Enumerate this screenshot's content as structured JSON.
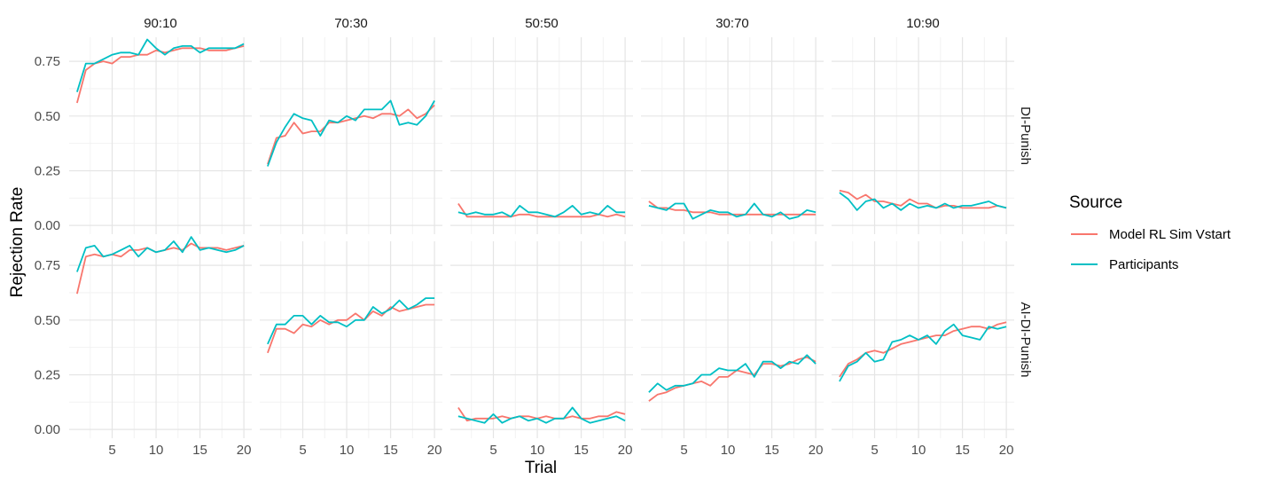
{
  "chart_data": {
    "type": "line",
    "xlabel": "Trial",
    "ylabel": "Rejection Rate",
    "xlim": [
      1,
      20
    ],
    "ylim": [
      0,
      0.85
    ],
    "x_ticks": [
      5,
      10,
      15,
      20
    ],
    "y_ticks": [
      0,
      0.25,
      0.5,
      0.75
    ],
    "y_tick_labels": [
      "0.00",
      "0.25",
      "0.50",
      "0.75"
    ],
    "grid": true,
    "legend": {
      "title": "Source",
      "position": "right",
      "entries": [
        {
          "name": "Model RL Sim Vstart",
          "color": "#F8766D"
        },
        {
          "name": "Participants",
          "color": "#00BFC4"
        }
      ]
    },
    "columns": [
      "90:10",
      "70:30",
      "50:50",
      "30:70",
      "10:90"
    ],
    "rows": [
      "DI-Punish",
      "AI-DI-Punish"
    ],
    "x": [
      1,
      2,
      3,
      4,
      5,
      6,
      7,
      8,
      9,
      10,
      11,
      12,
      13,
      14,
      15,
      16,
      17,
      18,
      19,
      20
    ],
    "panels": [
      {
        "row": "DI-Punish",
        "col": "90:10",
        "series": [
          {
            "name": "Model RL Sim Vstart",
            "values": [
              0.56,
              0.71,
              0.74,
              0.75,
              0.74,
              0.77,
              0.77,
              0.78,
              0.78,
              0.8,
              0.79,
              0.8,
              0.81,
              0.81,
              0.81,
              0.8,
              0.8,
              0.8,
              0.81,
              0.82
            ]
          },
          {
            "name": "Participants",
            "values": [
              0.61,
              0.74,
              0.74,
              0.76,
              0.78,
              0.79,
              0.79,
              0.78,
              0.85,
              0.81,
              0.78,
              0.81,
              0.82,
              0.82,
              0.79,
              0.81,
              0.81,
              0.81,
              0.81,
              0.83
            ]
          }
        ]
      },
      {
        "row": "DI-Punish",
        "col": "70:30",
        "series": [
          {
            "name": "Model RL Sim Vstart",
            "values": [
              0.28,
              0.4,
              0.41,
              0.47,
              0.42,
              0.43,
              0.43,
              0.47,
              0.47,
              0.48,
              0.49,
              0.5,
              0.49,
              0.51,
              0.51,
              0.5,
              0.53,
              0.49,
              0.51,
              0.55
            ]
          },
          {
            "name": "Participants",
            "values": [
              0.27,
              0.38,
              0.45,
              0.51,
              0.49,
              0.48,
              0.41,
              0.48,
              0.47,
              0.5,
              0.48,
              0.53,
              0.53,
              0.53,
              0.57,
              0.46,
              0.47,
              0.46,
              0.5,
              0.57
            ]
          }
        ]
      },
      {
        "row": "DI-Punish",
        "col": "50:50",
        "series": [
          {
            "name": "Model RL Sim Vstart",
            "values": [
              0.1,
              0.04,
              0.04,
              0.04,
              0.04,
              0.04,
              0.04,
              0.05,
              0.05,
              0.04,
              0.04,
              0.04,
              0.04,
              0.04,
              0.04,
              0.04,
              0.05,
              0.04,
              0.05,
              0.04
            ]
          },
          {
            "name": "Participants",
            "values": [
              0.06,
              0.05,
              0.06,
              0.05,
              0.05,
              0.06,
              0.04,
              0.09,
              0.06,
              0.06,
              0.05,
              0.04,
              0.06,
              0.09,
              0.05,
              0.06,
              0.05,
              0.09,
              0.06,
              0.06
            ]
          }
        ]
      },
      {
        "row": "DI-Punish",
        "col": "30:70",
        "series": [
          {
            "name": "Model RL Sim Vstart",
            "values": [
              0.11,
              0.08,
              0.08,
              0.07,
              0.07,
              0.06,
              0.06,
              0.06,
              0.05,
              0.05,
              0.05,
              0.05,
              0.05,
              0.05,
              0.05,
              0.05,
              0.05,
              0.05,
              0.05,
              0.05
            ]
          },
          {
            "name": "Participants",
            "values": [
              0.09,
              0.08,
              0.07,
              0.1,
              0.1,
              0.03,
              0.05,
              0.07,
              0.06,
              0.06,
              0.04,
              0.05,
              0.1,
              0.05,
              0.04,
              0.06,
              0.03,
              0.04,
              0.07,
              0.06
            ]
          }
        ]
      },
      {
        "row": "DI-Punish",
        "col": "10:90",
        "series": [
          {
            "name": "Model RL Sim Vstart",
            "values": [
              0.16,
              0.15,
              0.12,
              0.14,
              0.11,
              0.11,
              0.1,
              0.09,
              0.12,
              0.1,
              0.1,
              0.08,
              0.09,
              0.09,
              0.08,
              0.08,
              0.08,
              0.08,
              0.09,
              0.08
            ]
          },
          {
            "name": "Participants",
            "values": [
              0.15,
              0.12,
              0.07,
              0.11,
              0.12,
              0.08,
              0.1,
              0.07,
              0.1,
              0.08,
              0.09,
              0.08,
              0.1,
              0.08,
              0.09,
              0.09,
              0.1,
              0.11,
              0.09,
              0.08
            ]
          }
        ]
      },
      {
        "row": "AI-DI-Punish",
        "col": "90:10",
        "series": [
          {
            "name": "Model RL Sim Vstart",
            "values": [
              0.62,
              0.79,
              0.8,
              0.79,
              0.8,
              0.79,
              0.82,
              0.82,
              0.83,
              0.81,
              0.82,
              0.83,
              0.82,
              0.85,
              0.83,
              0.83,
              0.83,
              0.82,
              0.83,
              0.84
            ]
          },
          {
            "name": "Participants",
            "values": [
              0.72,
              0.83,
              0.84,
              0.79,
              0.8,
              0.82,
              0.84,
              0.79,
              0.83,
              0.81,
              0.82,
              0.86,
              0.81,
              0.88,
              0.82,
              0.83,
              0.82,
              0.81,
              0.82,
              0.84
            ]
          }
        ]
      },
      {
        "row": "AI-DI-Punish",
        "col": "70:30",
        "series": [
          {
            "name": "Model RL Sim Vstart",
            "values": [
              0.35,
              0.46,
              0.46,
              0.44,
              0.48,
              0.47,
              0.5,
              0.48,
              0.5,
              0.5,
              0.53,
              0.5,
              0.54,
              0.52,
              0.56,
              0.54,
              0.55,
              0.56,
              0.57,
              0.57
            ]
          },
          {
            "name": "Participants",
            "values": [
              0.39,
              0.48,
              0.48,
              0.52,
              0.52,
              0.48,
              0.52,
              0.49,
              0.49,
              0.47,
              0.5,
              0.5,
              0.56,
              0.53,
              0.55,
              0.59,
              0.55,
              0.57,
              0.6,
              0.6
            ]
          }
        ]
      },
      {
        "row": "AI-DI-Punish",
        "col": "50:50",
        "series": [
          {
            "name": "Model RL Sim Vstart",
            "values": [
              0.1,
              0.04,
              0.05,
              0.05,
              0.05,
              0.06,
              0.05,
              0.06,
              0.06,
              0.05,
              0.06,
              0.05,
              0.05,
              0.06,
              0.05,
              0.05,
              0.06,
              0.06,
              0.08,
              0.07
            ]
          },
          {
            "name": "Participants",
            "values": [
              0.06,
              0.05,
              0.04,
              0.03,
              0.07,
              0.03,
              0.05,
              0.06,
              0.04,
              0.05,
              0.03,
              0.05,
              0.05,
              0.1,
              0.05,
              0.03,
              0.04,
              0.05,
              0.06,
              0.04
            ]
          }
        ]
      },
      {
        "row": "AI-DI-Punish",
        "col": "30:70",
        "series": [
          {
            "name": "Model RL Sim Vstart",
            "values": [
              0.13,
              0.16,
              0.17,
              0.19,
              0.2,
              0.21,
              0.22,
              0.2,
              0.24,
              0.24,
              0.27,
              0.26,
              0.25,
              0.3,
              0.3,
              0.29,
              0.3,
              0.32,
              0.33,
              0.31
            ]
          },
          {
            "name": "Participants",
            "values": [
              0.17,
              0.21,
              0.18,
              0.2,
              0.2,
              0.21,
              0.25,
              0.25,
              0.28,
              0.27,
              0.27,
              0.3,
              0.24,
              0.31,
              0.31,
              0.28,
              0.31,
              0.3,
              0.34,
              0.3
            ]
          }
        ]
      },
      {
        "row": "AI-DI-Punish",
        "col": "10:90",
        "series": [
          {
            "name": "Model RL Sim Vstart",
            "values": [
              0.24,
              0.3,
              0.32,
              0.35,
              0.36,
              0.35,
              0.37,
              0.39,
              0.4,
              0.41,
              0.42,
              0.43,
              0.43,
              0.45,
              0.46,
              0.47,
              0.47,
              0.46,
              0.48,
              0.49
            ]
          },
          {
            "name": "Participants",
            "values": [
              0.22,
              0.29,
              0.31,
              0.35,
              0.31,
              0.32,
              0.4,
              0.41,
              0.43,
              0.41,
              0.43,
              0.39,
              0.45,
              0.48,
              0.43,
              0.42,
              0.41,
              0.47,
              0.46,
              0.47
            ]
          }
        ]
      }
    ]
  }
}
